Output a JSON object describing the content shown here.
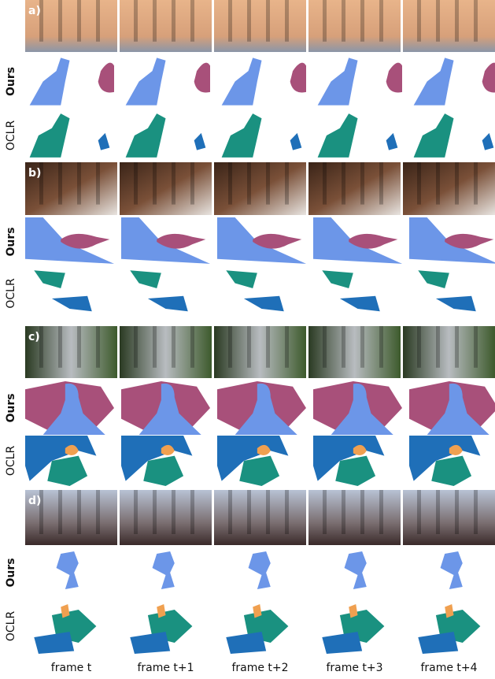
{
  "groups": [
    {
      "label": "a)",
      "rows": [
        "Ours",
        "OCLR"
      ]
    },
    {
      "label": "b)",
      "rows": [
        "Ours",
        "OCLR"
      ]
    },
    {
      "label": "c)",
      "rows": [
        "Ours",
        "OCLR"
      ]
    },
    {
      "label": "d)",
      "rows": [
        "Ours",
        "OCLR"
      ]
    }
  ],
  "frames": [
    "frame t",
    "frame t+1",
    "frame t+2",
    "frame t+3",
    "frame t+4"
  ]
}
